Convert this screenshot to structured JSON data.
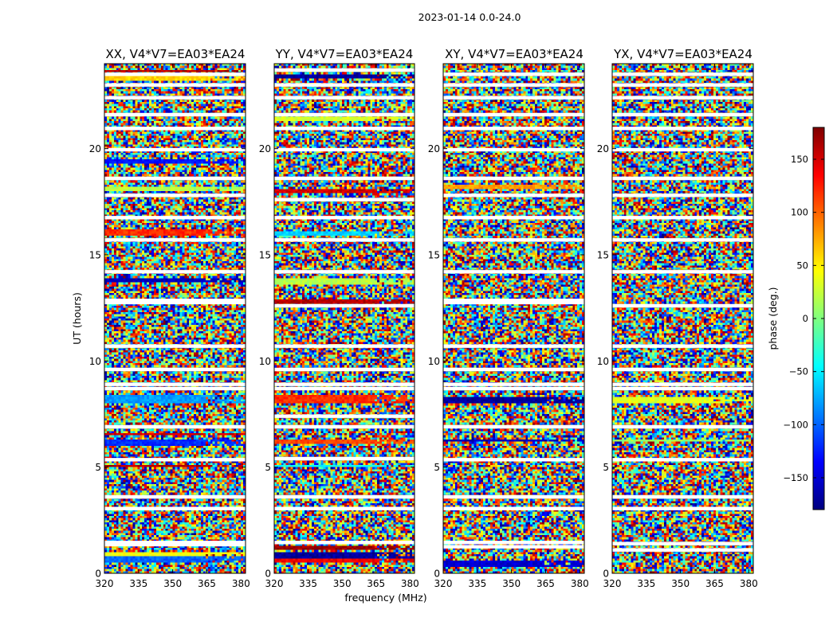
{
  "chart_data": {
    "type": "heatmap",
    "suptitle": "2023-01-14 0.0-24.0",
    "xlabel": "frequency (MHz)",
    "ylabel": "UT (hours)",
    "xlim": [
      320,
      382
    ],
    "ylim": [
      0,
      24
    ],
    "xticks": [
      320,
      335,
      350,
      365,
      380
    ],
    "yticks": [
      0,
      5,
      10,
      15,
      20
    ],
    "colorbar": {
      "label": "phase (deg.)",
      "range": [
        -180,
        180
      ],
      "ticks": [
        -150,
        -100,
        -50,
        0,
        50,
        100,
        150
      ],
      "tick_labels": [
        "−150",
        "−100",
        "−50",
        "0",
        "50",
        "100",
        "150"
      ],
      "colormap": "jet",
      "colors": [
        "#00007f",
        "#0000ff",
        "#007fff",
        "#00ffff",
        "#7fff7f",
        "#ffff00",
        "#ff7f00",
        "#ff0000",
        "#7f0000"
      ]
    },
    "panels": [
      {
        "title": "XX, V4*V7=EA03*EA24",
        "polarization": "XX",
        "coherent_bands": [
          {
            "t0": 0.55,
            "t1": 0.75,
            "phase": -100
          },
          {
            "t0": 0.8,
            "t1": 1.0,
            "phase": 40
          },
          {
            "t0": 4.95,
            "t1": 5.1,
            "phase": 160
          },
          {
            "t0": 6.05,
            "t1": 6.3,
            "phase": -120
          },
          {
            "t0": 6.45,
            "t1": 6.6,
            "phase": 150
          },
          {
            "t0": 8.05,
            "t1": 8.35,
            "phase": -80
          },
          {
            "t0": 13.75,
            "t1": 13.85,
            "phase": -160
          },
          {
            "t0": 15.95,
            "t1": 16.2,
            "phase": 120
          },
          {
            "t0": 18.0,
            "t1": 18.2,
            "phase": 20
          },
          {
            "t0": 19.35,
            "t1": 19.45,
            "phase": -130
          },
          {
            "t0": 23.25,
            "t1": 23.45,
            "phase": 60
          },
          {
            "t0": 23.6,
            "t1": 23.7,
            "phase": 160
          }
        ],
        "gaps": [
          1.35,
          1.45,
          3.05,
          3.6,
          5.35,
          6.9,
          8.7,
          8.9,
          9.6,
          10.7,
          12.75,
          12.85,
          14.2,
          15.7,
          16.75,
          17.8,
          18.6,
          19.95,
          20.95,
          21.6,
          22.4,
          23.0,
          23.5
        ]
      },
      {
        "title": "YY, V4*V7=EA03*EA24",
        "polarization": "YY",
        "coherent_bands": [
          {
            "t0": 0.5,
            "t1": 0.7,
            "phase": 140
          },
          {
            "t0": 0.75,
            "t1": 1.0,
            "phase": -170
          },
          {
            "t0": 1.1,
            "t1": 1.3,
            "phase": 170
          },
          {
            "t0": 4.95,
            "t1": 5.1,
            "phase": -40
          },
          {
            "t0": 6.1,
            "t1": 6.3,
            "phase": 110
          },
          {
            "t0": 8.05,
            "t1": 8.35,
            "phase": 120
          },
          {
            "t0": 12.75,
            "t1": 12.85,
            "phase": 160
          },
          {
            "t0": 13.65,
            "t1": 13.85,
            "phase": 20
          },
          {
            "t0": 15.9,
            "t1": 16.1,
            "phase": -60
          },
          {
            "t0": 17.9,
            "t1": 18.1,
            "phase": 150
          },
          {
            "t0": 21.3,
            "t1": 21.5,
            "phase": 30
          },
          {
            "t0": 23.35,
            "t1": 23.5,
            "phase": -170
          }
        ],
        "gaps": [
          1.45,
          3.05,
          3.6,
          5.4,
          6.9,
          7.4,
          8.7,
          8.9,
          9.6,
          10.7,
          12.6,
          14.2,
          15.7,
          16.75,
          17.6,
          18.6,
          19.95,
          20.95,
          21.6,
          22.4,
          23.0,
          23.7
        ]
      },
      {
        "title": "XY, V4*V7=EA03*EA24",
        "polarization": "XY",
        "coherent_bands": [
          {
            "t0": 0.3,
            "t1": 0.6,
            "phase": -150
          },
          {
            "t0": 6.2,
            "t1": 6.35,
            "phase": -160
          },
          {
            "t0": 8.05,
            "t1": 8.3,
            "phase": -170
          },
          {
            "t0": 18.1,
            "t1": 18.25,
            "phase": 80
          }
        ],
        "gaps": [
          1.25,
          1.45,
          3.05,
          3.6,
          5.35,
          6.9,
          8.7,
          8.9,
          9.6,
          10.7,
          12.75,
          12.85,
          14.2,
          15.7,
          16.75,
          17.8,
          18.6,
          19.95,
          20.95,
          21.6,
          22.4,
          23.0,
          23.5
        ]
      },
      {
        "title": "YX, V4*V7=EA03*EA24",
        "polarization": "YX",
        "coherent_bands": [
          {
            "t0": 6.2,
            "t1": 6.35,
            "phase": 10
          },
          {
            "t0": 8.05,
            "t1": 8.25,
            "phase": 35
          }
        ],
        "gaps": [
          1.1,
          1.4,
          3.05,
          3.6,
          5.35,
          6.9,
          8.7,
          8.9,
          9.6,
          10.7,
          12.6,
          14.2,
          15.7,
          16.75,
          17.8,
          18.6,
          19.95,
          20.95,
          21.6,
          22.4,
          23.0,
          23.5
        ]
      }
    ]
  }
}
